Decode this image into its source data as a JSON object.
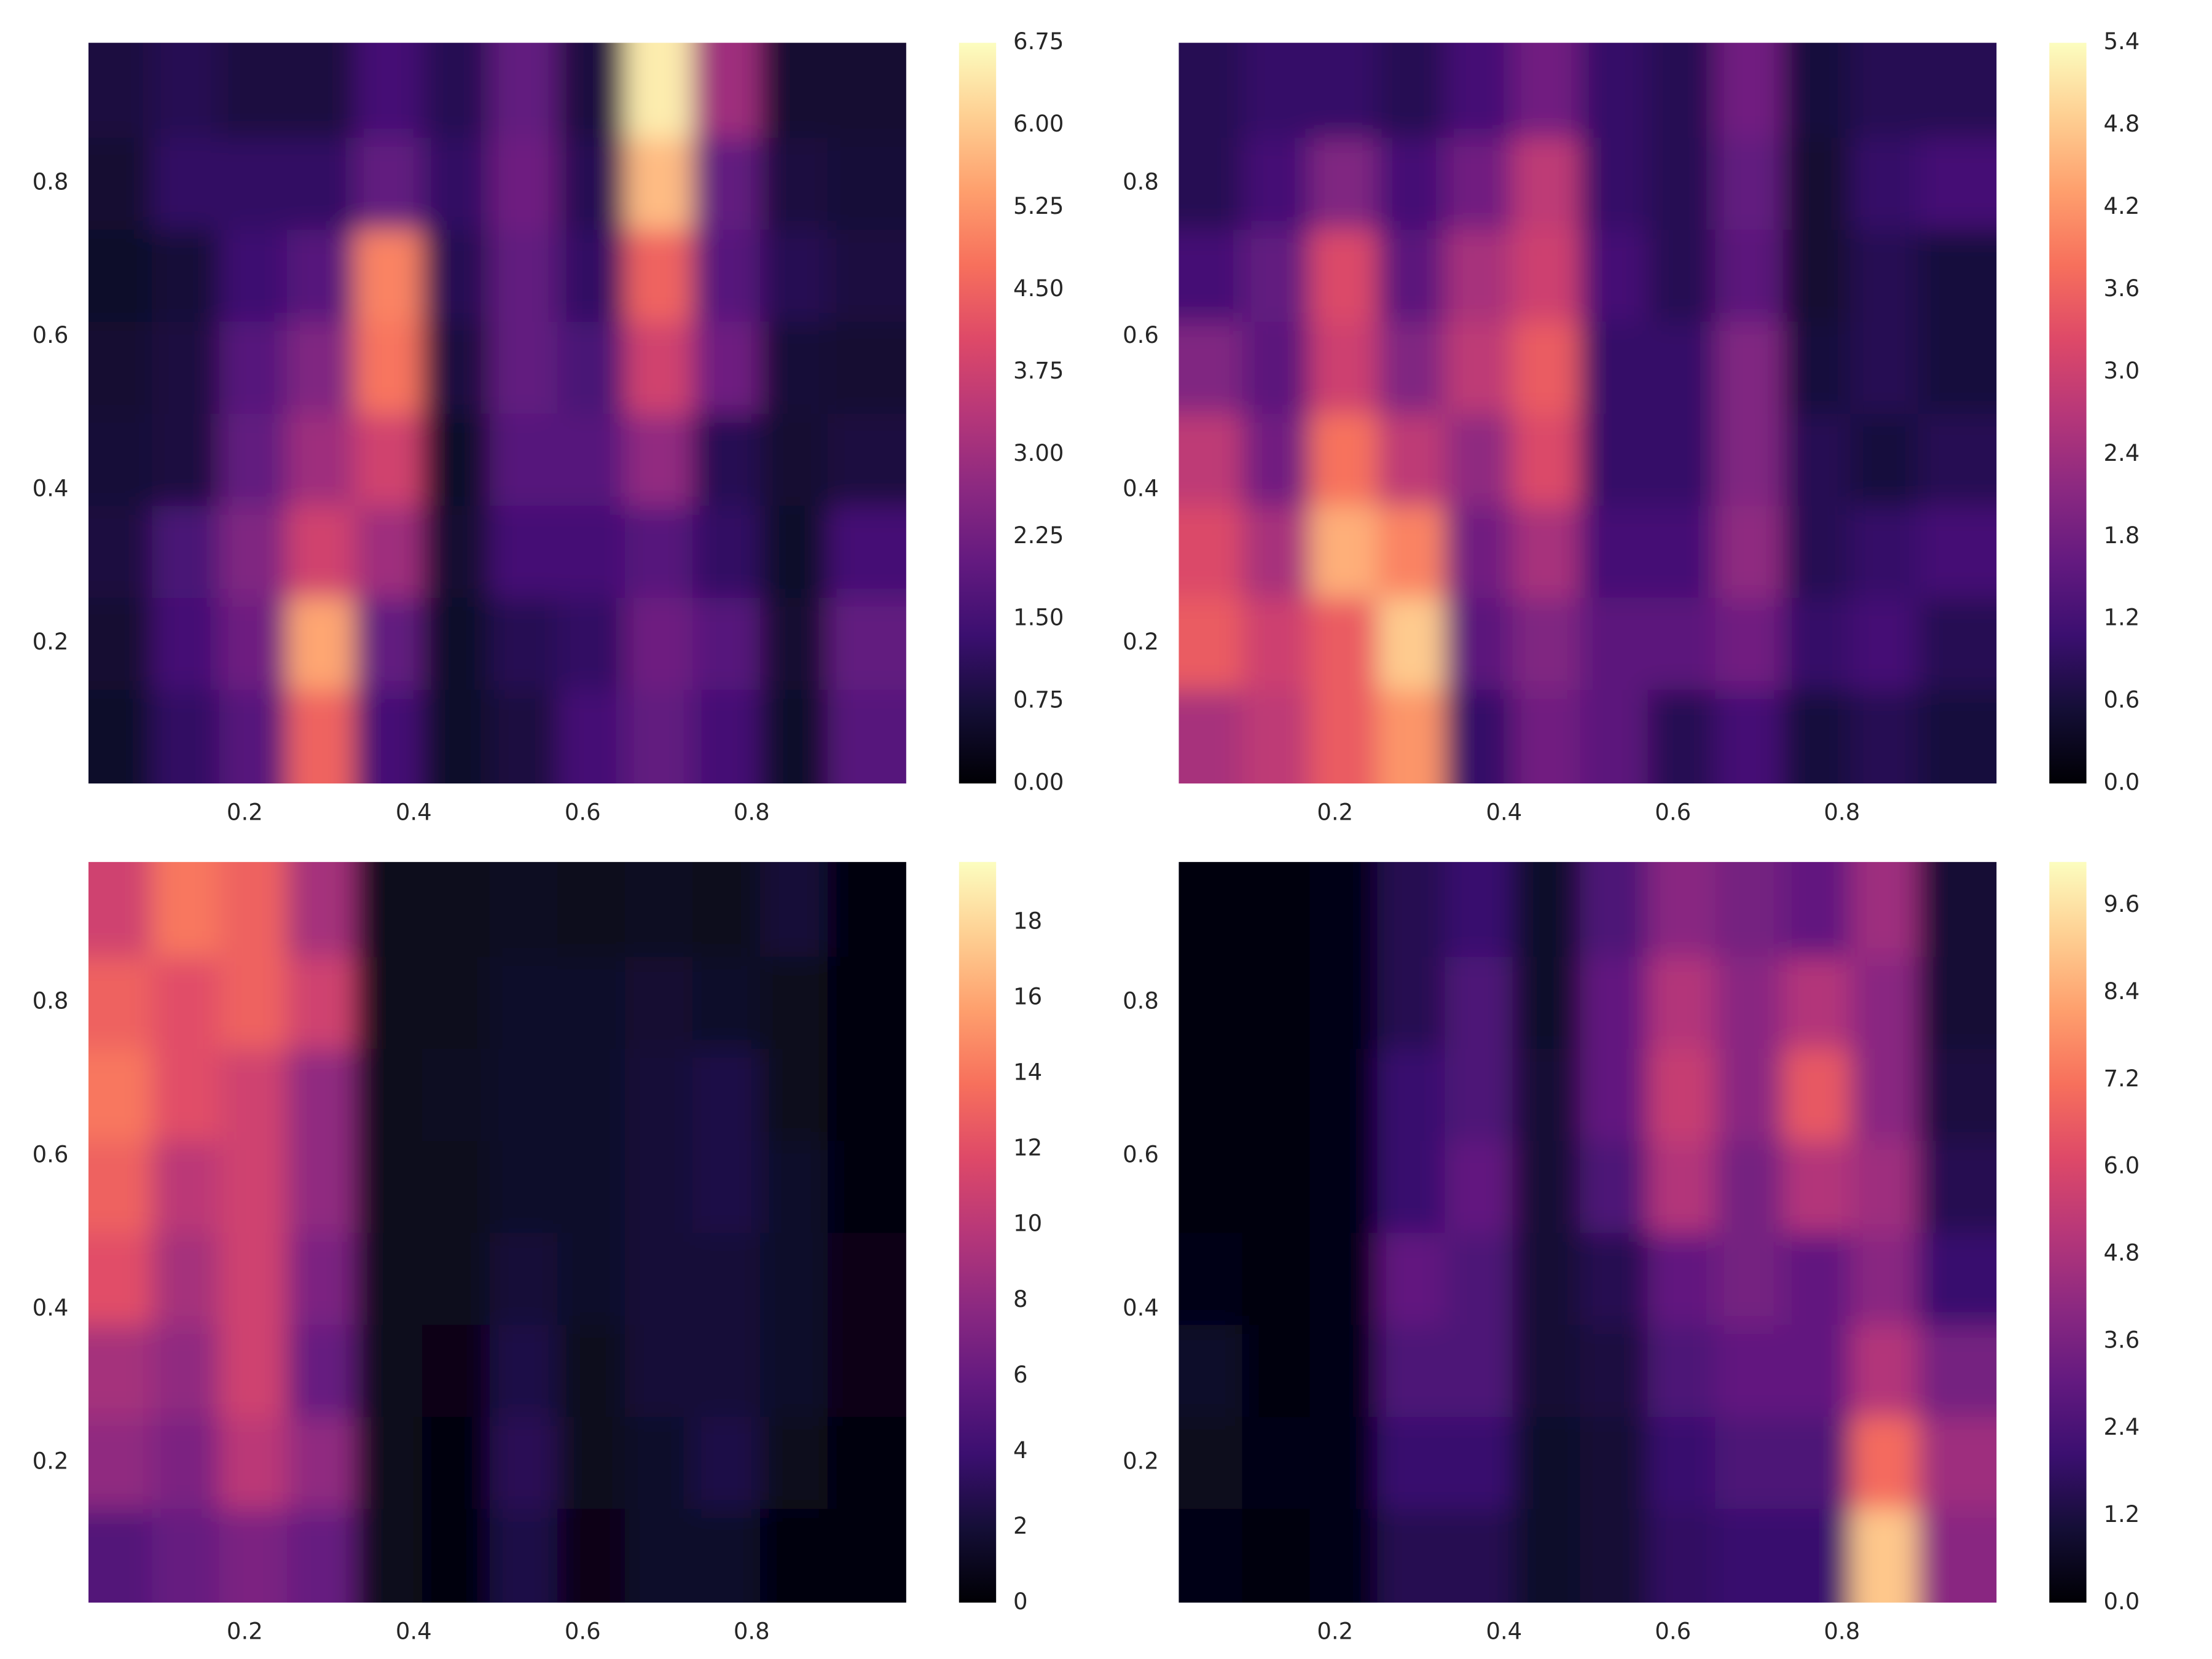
{
  "chart_data": [
    {
      "type": "contour",
      "colormap": "magma",
      "x": [
        0.05,
        0.13,
        0.21,
        0.29,
        0.37,
        0.45,
        0.53,
        0.61,
        0.69,
        0.77,
        0.85,
        0.93
      ],
      "y": [
        0.08,
        0.2,
        0.32,
        0.44,
        0.56,
        0.68,
        0.8,
        0.92
      ],
      "z": [
        [
          0.5,
          1.2,
          1.8,
          4.5,
          1.5,
          0.5,
          0.8,
          1.5,
          2.0,
          1.5,
          0.5,
          1.8
        ],
        [
          0.6,
          1.5,
          2.2,
          5.5,
          2.0,
          0.5,
          1.0,
          1.2,
          2.2,
          1.8,
          0.6,
          2.0
        ],
        [
          0.8,
          1.6,
          2.5,
          3.8,
          3.0,
          0.6,
          1.5,
          1.5,
          1.8,
          1.2,
          0.5,
          1.5
        ],
        [
          0.7,
          0.8,
          2.0,
          3.0,
          3.8,
          0.5,
          1.8,
          1.8,
          2.8,
          1.0,
          0.6,
          0.8
        ],
        [
          0.6,
          0.8,
          1.8,
          2.5,
          4.8,
          0.8,
          2.0,
          1.6,
          3.8,
          2.2,
          0.7,
          0.6
        ],
        [
          0.5,
          0.7,
          1.4,
          1.8,
          5.0,
          1.0,
          2.0,
          1.2,
          4.5,
          1.8,
          1.0,
          0.8
        ],
        [
          0.6,
          1.2,
          1.2,
          1.2,
          2.0,
          1.2,
          2.2,
          1.0,
          5.8,
          2.0,
          0.8,
          0.7
        ],
        [
          0.8,
          1.0,
          0.8,
          0.8,
          1.5,
          1.0,
          2.0,
          0.8,
          6.5,
          3.0,
          0.6,
          0.6
        ]
      ],
      "xlim": [
        0.015,
        0.983
      ],
      "ylim": [
        0.017,
        0.983
      ],
      "xticks": [
        0.2,
        0.4,
        0.6,
        0.8
      ],
      "yticks": [
        0.2,
        0.4,
        0.6,
        0.8
      ],
      "zlim": [
        0,
        6.75
      ],
      "zticks": [
        {
          "value": 0,
          "label": "0.00"
        },
        0.75,
        {
          "value": 1.5,
          "label": "1.50"
        },
        2.25,
        {
          "value": 3,
          "label": "3.00"
        },
        3.75,
        {
          "value": 4.5,
          "label": "4.50"
        },
        5.25,
        {
          "value": 6,
          "label": "6.00"
        },
        6.75
      ]
    },
    {
      "type": "contour",
      "colormap": "magma",
      "x": [
        0.05,
        0.13,
        0.21,
        0.29,
        0.37,
        0.45,
        0.53,
        0.61,
        0.69,
        0.77,
        0.85,
        0.93
      ],
      "y": [
        0.08,
        0.2,
        0.32,
        0.44,
        0.56,
        0.68,
        0.8,
        0.92
      ],
      "z": [
        [
          2.5,
          2.8,
          3.5,
          4.2,
          1.0,
          1.8,
          1.5,
          0.8,
          1.2,
          0.6,
          0.8,
          0.6
        ],
        [
          3.5,
          3.0,
          3.5,
          4.8,
          1.5,
          2.0,
          1.5,
          1.5,
          1.8,
          1.0,
          1.2,
          0.8
        ],
        [
          3.2,
          2.5,
          4.5,
          4.0,
          1.8,
          2.5,
          1.2,
          1.2,
          2.2,
          0.8,
          1.0,
          1.2
        ],
        [
          2.8,
          1.8,
          3.8,
          2.8,
          2.2,
          3.2,
          1.0,
          1.0,
          2.0,
          0.8,
          0.6,
          0.8
        ],
        [
          2.0,
          1.5,
          3.0,
          2.0,
          2.8,
          3.5,
          1.0,
          1.0,
          2.0,
          0.6,
          0.8,
          0.6
        ],
        [
          1.2,
          1.6,
          3.2,
          1.5,
          2.5,
          3.0,
          1.2,
          0.8,
          1.5,
          0.5,
          0.8,
          0.6
        ],
        [
          0.8,
          1.2,
          2.0,
          1.2,
          1.8,
          2.8,
          1.0,
          0.8,
          1.6,
          0.5,
          1.0,
          1.2
        ],
        [
          0.8,
          1.0,
          1.0,
          0.8,
          1.2,
          1.8,
          1.0,
          0.8,
          1.8,
          0.6,
          0.8,
          0.8
        ]
      ],
      "xlim": [
        0.015,
        0.983
      ],
      "ylim": [
        0.017,
        0.983
      ],
      "xticks": [
        0.2,
        0.4,
        0.6,
        0.8
      ],
      "yticks": [
        0.2,
        0.4,
        0.6,
        0.8
      ],
      "zlim": [
        0,
        5.4
      ],
      "zticks": [
        {
          "value": 0,
          "label": "0.0"
        },
        0.6,
        1.2,
        1.8,
        2.4,
        {
          "value": 3,
          "label": "3.0"
        },
        3.6,
        4.2,
        4.8,
        5.4
      ]
    },
    {
      "type": "contour",
      "colormap": "magma",
      "x": [
        0.05,
        0.13,
        0.21,
        0.29,
        0.37,
        0.45,
        0.53,
        0.61,
        0.69,
        0.77,
        0.85,
        0.93
      ],
      "y": [
        0.08,
        0.2,
        0.32,
        0.44,
        0.56,
        0.68,
        0.8,
        0.92
      ],
      "z": [
        [
          5,
          6,
          7,
          6,
          1,
          0.5,
          2.5,
          0.8,
          1.5,
          1.5,
          0.5,
          0.5
        ],
        [
          8,
          7,
          10,
          8,
          1,
          0.5,
          3,
          1,
          1.5,
          2.5,
          1,
          0.5
        ],
        [
          9,
          8,
          11,
          6,
          1,
          0.8,
          2.5,
          1,
          2,
          2,
          1.5,
          0.8
        ],
        [
          12,
          9,
          11,
          7,
          1,
          1,
          2,
          1.5,
          2,
          2,
          1.5,
          0.8
        ],
        [
          13,
          10,
          11,
          8,
          1,
          1,
          1.5,
          1.5,
          2,
          2.5,
          1.5,
          0.5
        ],
        [
          14,
          12,
          11,
          8,
          1,
          1.2,
          1.5,
          1.5,
          2,
          2.5,
          1,
          0.5
        ],
        [
          13,
          12,
          13,
          11,
          1,
          1,
          1.5,
          1.5,
          1.8,
          1.5,
          1,
          0.5
        ],
        [
          11,
          14,
          13,
          9,
          1,
          1,
          1.2,
          1,
          1.2,
          1,
          2,
          0.5
        ]
      ],
      "xlim": [
        0.015,
        0.983
      ],
      "ylim": [
        0.017,
        0.983
      ],
      "xticks": [
        0.2,
        0.4,
        0.6,
        0.8
      ],
      "yticks": [
        0.2,
        0.4,
        0.6,
        0.8
      ],
      "zlim": [
        0,
        19.6
      ],
      "zticks": [
        0,
        2,
        4,
        6,
        8,
        10,
        12,
        14,
        16,
        18
      ]
    },
    {
      "type": "contour",
      "colormap": "magma",
      "x": [
        0.05,
        0.13,
        0.21,
        0.29,
        0.37,
        0.45,
        0.53,
        0.61,
        0.69,
        0.77,
        0.85,
        0.93
      ],
      "y": [
        0.08,
        0.2,
        0.32,
        0.44,
        0.56,
        0.68,
        0.8,
        0.92
      ],
      "z": [
        [
          0.3,
          0.2,
          0.3,
          1.5,
          1.5,
          0.8,
          1.0,
          1.8,
          2.0,
          2.0,
          9.0,
          4.0
        ],
        [
          0.5,
          0.3,
          0.3,
          2.0,
          2.0,
          0.8,
          1.0,
          2.0,
          2.5,
          2.5,
          7.0,
          4.5
        ],
        [
          0.8,
          0.2,
          0.3,
          2.5,
          2.5,
          1.0,
          1.2,
          2.5,
          3.0,
          3.0,
          5.0,
          3.5
        ],
        [
          0.3,
          0.2,
          0.3,
          3.0,
          2.5,
          1.0,
          1.5,
          3.0,
          3.5,
          3.0,
          4.0,
          2.0
        ],
        [
          0.2,
          0.2,
          0.3,
          2.0,
          3.0,
          1.0,
          2.5,
          5.0,
          3.5,
          5.0,
          4.5,
          1.5
        ],
        [
          0.2,
          0.2,
          0.3,
          2.0,
          2.5,
          1.0,
          3.0,
          5.5,
          4.0,
          6.5,
          4.0,
          1.2
        ],
        [
          0.2,
          0.2,
          0.3,
          1.5,
          2.5,
          0.8,
          3.0,
          5.0,
          4.0,
          5.0,
          4.0,
          1.0
        ],
        [
          0.2,
          0.2,
          0.3,
          1.5,
          2.0,
          0.8,
          2.5,
          4.0,
          3.5,
          3.0,
          4.5,
          1.0
        ]
      ],
      "xlim": [
        0.015,
        0.983
      ],
      "ylim": [
        0.017,
        0.983
      ],
      "xticks": [
        0.2,
        0.4,
        0.6,
        0.8
      ],
      "yticks": [
        0.2,
        0.4,
        0.6,
        0.8
      ],
      "zlim": [
        0,
        10.2
      ],
      "zticks": [
        {
          "value": 0,
          "label": "0.0"
        },
        1.2,
        2.4,
        3.6,
        4.8,
        {
          "value": 6,
          "label": "6.0"
        },
        7.2,
        8.4,
        9.6
      ]
    }
  ]
}
